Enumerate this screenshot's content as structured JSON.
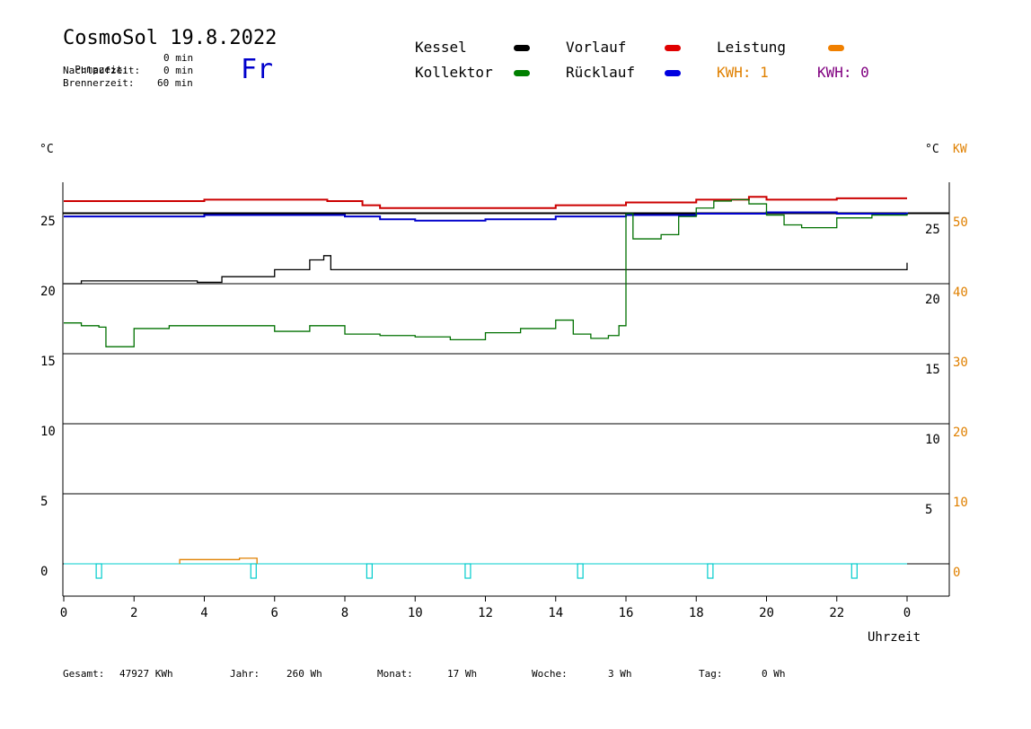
{
  "header": {
    "title": "CosmoSol 19.8.2022",
    "day": "Fr",
    "params": [
      {
        "label": "Pumpzeit:",
        "value": "0 min"
      },
      {
        "label": "Nachlaufzeit:",
        "value": "0 min"
      },
      {
        "label": "Brennerzeit:",
        "value": "60 min"
      }
    ]
  },
  "legend": [
    {
      "label": "Kessel",
      "color": "#000000"
    },
    {
      "label": "Kollektor",
      "color": "#008000"
    },
    {
      "label": "Vorlauf",
      "color": "#e00000"
    },
    {
      "label": "Rücklauf",
      "color": "#0000e0"
    },
    {
      "label": "Leistung",
      "color": "#f08000"
    }
  ],
  "kwh": {
    "left": "KWH: 1",
    "right": "KWH: 0",
    "left_color": "#e08000",
    "right_color": "#800080"
  },
  "axes": {
    "left_unit": "°C",
    "right_unit": "°C",
    "right_unit2": "KW",
    "x_label": "Uhrzeit"
  },
  "footer": {
    "items": [
      {
        "label": "Gesamt:",
        "value": "47927 KWh"
      },
      {
        "label": "Jahr:",
        "value": "260 Wh"
      },
      {
        "label": "Monat:",
        "value": "17 Wh"
      },
      {
        "label": "Woche:",
        "value": "3 Wh"
      },
      {
        "label": "Tag:",
        "value": "0 Wh"
      }
    ]
  },
  "chart_data": {
    "type": "line",
    "x_ticks": [
      "0",
      "2",
      "4",
      "6",
      "8",
      "10",
      "12",
      "14",
      "16",
      "18",
      "20",
      "22",
      "0"
    ],
    "x_range": [
      0,
      24
    ],
    "y_left_ticks": [
      "0",
      "5",
      "10",
      "15",
      "20",
      "25"
    ],
    "y_left_range": [
      0,
      25
    ],
    "y_right_ticks": [
      "5",
      "10",
      "15",
      "20",
      "25"
    ],
    "y_right_kw_ticks": [
      "0",
      "10",
      "20",
      "30",
      "40",
      "50"
    ],
    "series": [
      {
        "name": "Vorlauf",
        "color": "#cc0000",
        "x": [
          0,
          2,
          4,
          6,
          7.5,
          8.5,
          9,
          11,
          12,
          14,
          16,
          18,
          19.5,
          20,
          22,
          24
        ],
        "y": [
          25.9,
          25.9,
          26.0,
          26.0,
          25.9,
          25.6,
          25.4,
          25.4,
          25.4,
          25.6,
          25.8,
          26.0,
          26.2,
          26.0,
          26.1,
          26.1
        ]
      },
      {
        "name": "Rücklauf",
        "color": "#0000cc",
        "x": [
          0,
          2,
          4,
          6,
          8,
          9,
          10,
          12,
          14,
          16,
          18,
          20,
          22,
          24
        ],
        "y": [
          24.8,
          24.8,
          24.9,
          24.9,
          24.8,
          24.6,
          24.5,
          24.6,
          24.8,
          24.9,
          25.0,
          25.1,
          25.0,
          25.1
        ]
      },
      {
        "name": "Kessel",
        "color": "#000000",
        "x": [
          0,
          0.5,
          3.8,
          4.5,
          6,
          7,
          7.4,
          7.6,
          8,
          10,
          12,
          14,
          16,
          18,
          20,
          22,
          23,
          24
        ],
        "y": [
          20.0,
          20.2,
          20.1,
          20.5,
          21.0,
          21.7,
          22.0,
          21.0,
          21.0,
          21.0,
          21.0,
          21.0,
          21.0,
          21.0,
          21.0,
          21.0,
          21.0,
          21.5
        ]
      },
      {
        "name": "Kollektor",
        "color": "#007000",
        "x": [
          0,
          0.5,
          1,
          1.2,
          1.6,
          2,
          3,
          5,
          6,
          7,
          8,
          9,
          10,
          11,
          12,
          13,
          14,
          14.5,
          15,
          15.5,
          15.8,
          16,
          16.2,
          17,
          17.5,
          18,
          18.5,
          19,
          19.5,
          20,
          20.5,
          21,
          22,
          23,
          24
        ],
        "y": [
          17.2,
          17.0,
          16.9,
          15.5,
          15.5,
          16.8,
          17.0,
          17.0,
          16.6,
          17.0,
          16.4,
          16.3,
          16.2,
          16.0,
          16.5,
          16.8,
          17.4,
          16.4,
          16.1,
          16.3,
          17.0,
          25.0,
          23.2,
          23.5,
          24.8,
          25.4,
          25.9,
          26.0,
          25.7,
          24.9,
          24.2,
          24.0,
          24.7,
          24.9,
          25.0
        ]
      },
      {
        "name": "Leistung",
        "color": "#e08000",
        "x": [
          3.3,
          3.3,
          4,
          5,
          5.5,
          5.5
        ],
        "y": [
          0,
          0.3,
          0.3,
          0.4,
          0.3,
          0
        ]
      }
    ],
    "markers_x": [
      1.0,
      5.4,
      8.7,
      11.5,
      14.7,
      18.4,
      22.5
    ],
    "grid": true
  }
}
